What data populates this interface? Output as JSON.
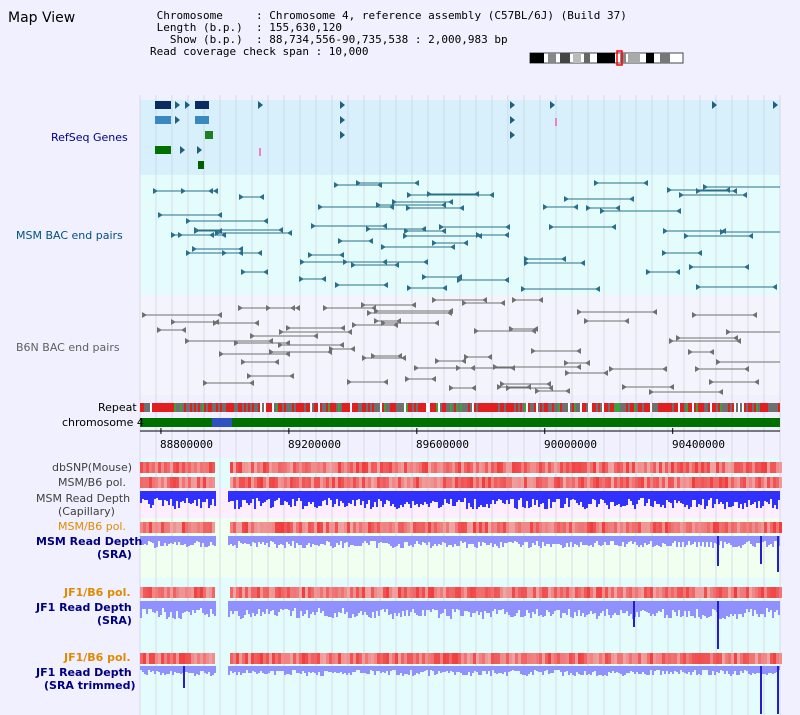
{
  "title": "Map View",
  "header": {
    "lines": [
      " Chromosome     : Chromosome 4, reference assembly (C57BL/6J) (Build 37)",
      " Length (b.p.)  : 155,630,120",
      "   Show (b.p.)  : 88,734,556-90,735,538 : 2,000,983 bp",
      "Read coverage check span : 10,000"
    ]
  },
  "tracks": [
    {
      "id": "refseq",
      "label": "RefSeq Genes",
      "color": "#000088"
    },
    {
      "id": "msm_bac",
      "label": "MSM BAC end pairs",
      "color": "#005080"
    },
    {
      "id": "b6n_bac",
      "label": "B6N BAC end pairs",
      "color": "#606060"
    },
    {
      "id": "repeat",
      "label": "Repeat",
      "color": "#000000"
    },
    {
      "id": "chrom",
      "label": "chromosome 4",
      "color": "#000000"
    },
    {
      "id": "dbsnp",
      "label": "dbSNP(Mouse)",
      "color": "#404040"
    },
    {
      "id": "msm_pol",
      "label": "MSM/B6 pol.",
      "color": "#404040"
    },
    {
      "id": "msm_depth_cap_1",
      "label": "MSM Read Depth",
      "color": "#404040"
    },
    {
      "id": "msm_depth_cap_2",
      "label": "(Capillary)",
      "color": "#404040"
    },
    {
      "id": "msm_pol_sra",
      "label": "MSM/B6 pol.",
      "color": "#e08a00"
    },
    {
      "id": "msm_depth_sra_1",
      "label": "MSM Read Depth",
      "color": "#000080"
    },
    {
      "id": "msm_depth_sra_2",
      "label": "(SRA)",
      "color": "#000080"
    },
    {
      "id": "jf1_pol",
      "label": "JF1/B6 pol.",
      "color": "#e08a00"
    },
    {
      "id": "jf1_depth_1",
      "label": "JF1 Read Depth",
      "color": "#000080"
    },
    {
      "id": "jf1_depth_2",
      "label": "(SRA)",
      "color": "#000080"
    },
    {
      "id": "jf1_pol_t",
      "label": "JF1/B6 pol.",
      "color": "#e08a00"
    },
    {
      "id": "jf1_depth_t_1",
      "label": "JF1 Read Depth",
      "color": "#000080"
    },
    {
      "id": "jf1_depth_t_2",
      "label": "(SRA trimmed)",
      "color": "#000080"
    }
  ],
  "axis": {
    "ticks": [
      "88800000",
      "89200000",
      "89600000",
      "90000000",
      "90400000"
    ],
    "tick_values": [
      88800000,
      89200000,
      89600000,
      90000000,
      90400000
    ],
    "range": [
      88734556,
      90735538
    ]
  },
  "colors": {
    "refseq_bg": "#d8f0fc",
    "bac_bg": "#e4fcfc",
    "b6n_bg": "#f4f4fc",
    "depth_bg": "#f0fff0",
    "pink_bg": "#fceefc",
    "grid": "#c8c8d8",
    "chrom_green": "#007000",
    "depth_blue": "#3030ff",
    "depth_light": "#9090ff",
    "pol_red": "#f07070"
  },
  "ideogram": {
    "marker": "red-box"
  }
}
